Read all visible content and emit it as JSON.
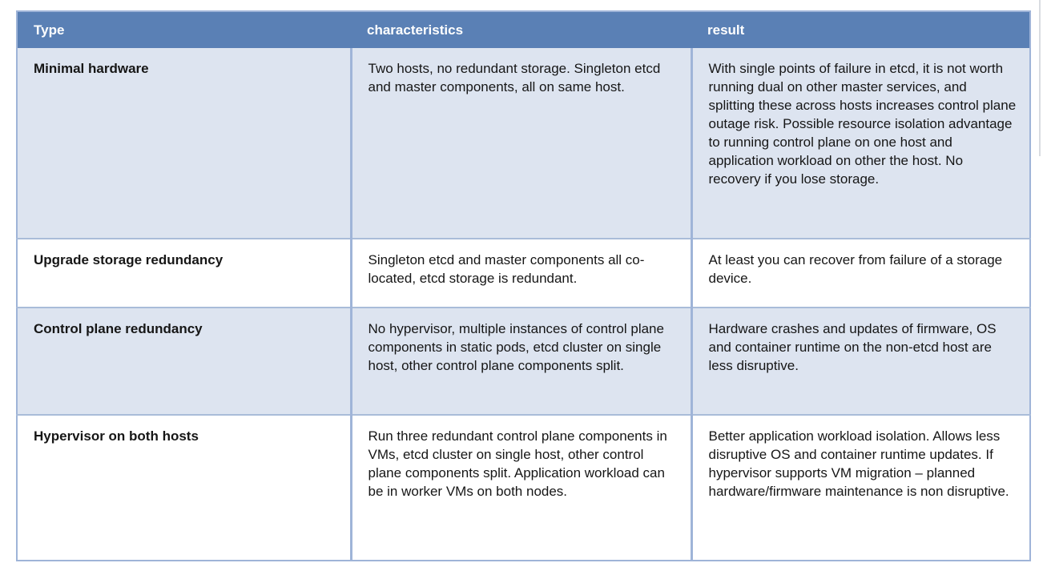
{
  "colors": {
    "header_bg": "#5a80b5",
    "header_text": "#ffffff",
    "row_alt_bg": "#dde4f0",
    "row_bg": "#ffffff",
    "border": "#9fb4d8",
    "body_text": "#161616"
  },
  "table": {
    "columns": [
      {
        "id": "type",
        "label": "Type"
      },
      {
        "id": "characteristics",
        "label": "characteristics"
      },
      {
        "id": "result",
        "label": "result"
      }
    ],
    "rows": [
      {
        "type": "Minimal hardware",
        "characteristics": "Two hosts, no redundant storage. Singleton etcd and master components, all on same host.",
        "result": "With single points of failure in etcd, it is not worth running dual on other master services, and splitting these across hosts increases control plane outage risk. Possible resource isolation advantage to running control plane on one host and application workload on other the host. No recovery if you lose storage."
      },
      {
        "type": "Upgrade storage redundancy",
        "characteristics": "Singleton etcd and master components all co-located, etcd storage is redundant.",
        "result": "At least you can recover from failure of a storage device."
      },
      {
        "type": "Control plane redundancy",
        "characteristics": "No hypervisor, multiple instances of control plane components in static pods, etcd cluster on single host, other control plane components split.",
        "result": "Hardware crashes and updates of firmware, OS and container runtime on the non-etcd host are less disruptive."
      },
      {
        "type": "Hypervisor on both hosts",
        "characteristics": "Run three redundant control plane components in VMs, etcd cluster on single host, other control plane components split. Application workload can be in worker VMs on both nodes.",
        "result": "Better application workload isolation. Allows less disruptive OS and container runtime updates. If hypervisor supports VM migration – planned hardware/firmware maintenance is non disruptive."
      }
    ]
  }
}
